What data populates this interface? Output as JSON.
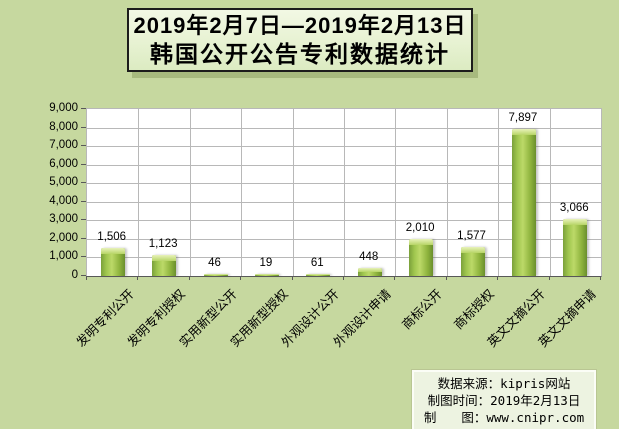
{
  "title": {
    "line1": "2019年2月7日—2019年2月13日",
    "line2": "韩国公开公告专利数据统计"
  },
  "chart_data": {
    "type": "bar",
    "title": "2019年2月7日—2019年2月13日 韩国公开公告专利数据统计",
    "categories": [
      "发明专利公开",
      "发明专利授权",
      "实用新型公开",
      "实用新型授权",
      "外观设计公开",
      "外观设计申请",
      "商标公开",
      "商标授权",
      "英文文摘公开",
      "英文文摘申请"
    ],
    "values": [
      1506,
      1123,
      46,
      19,
      61,
      448,
      2010,
      1577,
      7897,
      3066
    ],
    "value_labels": [
      "1,506",
      "1,123",
      "46",
      "19",
      "61",
      "448",
      "2,010",
      "1,577",
      "7,897",
      "3,066"
    ],
    "xlabel": "",
    "ylabel": "",
    "ylim": [
      0,
      9000
    ],
    "ytick_step": 1000,
    "ytick_labels": [
      "0",
      "1,000",
      "2,000",
      "3,000",
      "4,000",
      "5,000",
      "6,000",
      "7,000",
      "8,000",
      "9,000"
    ],
    "grid": "on",
    "legend": "none",
    "bar_style": "3d-bevel-green"
  },
  "footer": {
    "lines": [
      "数据来源：kipris网站",
      "制图时间：2019年2月13日",
      "制　　图：www.cnipr.com"
    ]
  },
  "colors": {
    "page_bg": "#c6d89f",
    "plot_bg": "#ffffff",
    "grid_line": "#b8b8b8",
    "axis_line": "#585858",
    "bar_main": "#8db23c",
    "bar_highlight": "#bcd968",
    "bar_edge_dark": "#6a8f2d",
    "title_box_bg": "#ecf4d9",
    "title_box_border": "#1c1c1c",
    "title_box_shadow": "#a7ba7e",
    "footer_box_bg": "#edf3e1",
    "footer_box_border": "#fbfdf6",
    "text": "#000000"
  }
}
